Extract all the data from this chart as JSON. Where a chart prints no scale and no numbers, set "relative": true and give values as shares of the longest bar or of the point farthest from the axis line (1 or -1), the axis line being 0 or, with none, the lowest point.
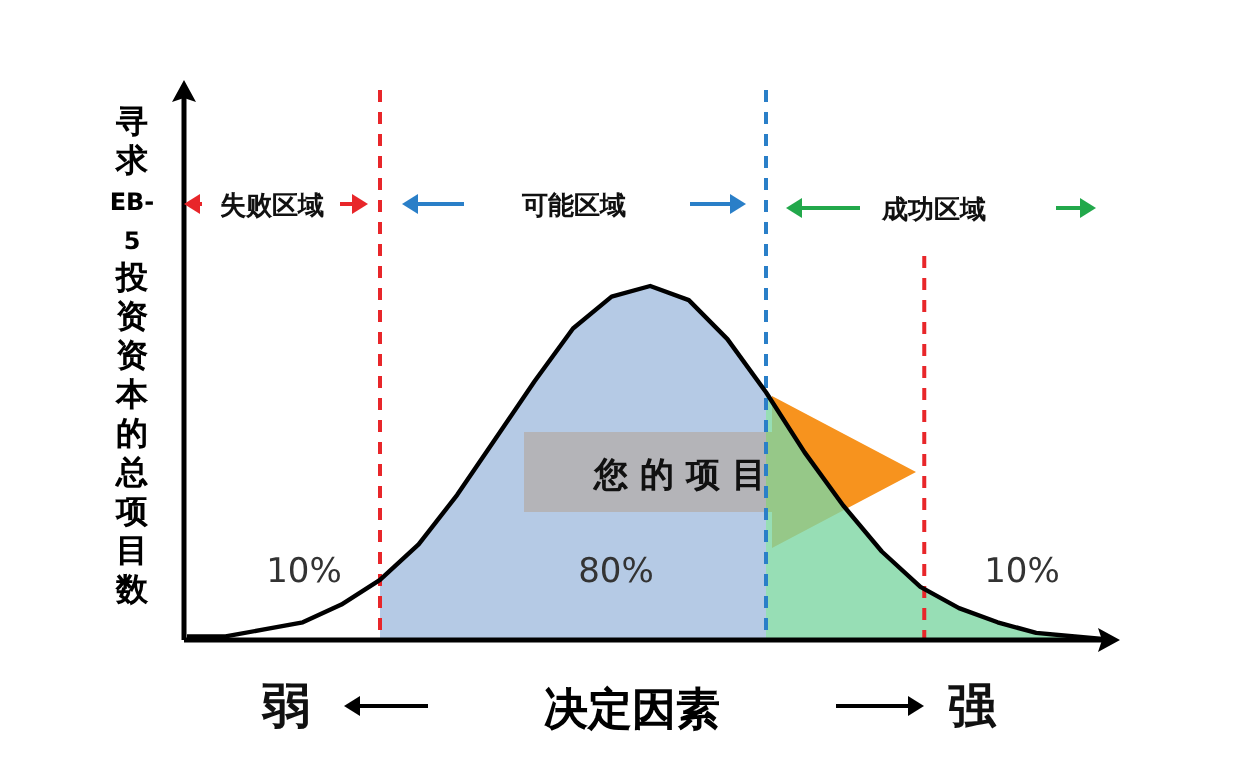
{
  "chart_data": {
    "type": "area",
    "relative": true,
    "xlabel": "决定因素",
    "ylabel": "寻求EB-5投资资本的总项目数",
    "categories": [
      null,
      null,
      null,
      null,
      null,
      null,
      null,
      null,
      null,
      null,
      null,
      null,
      null,
      null,
      null,
      null,
      null,
      null,
      null,
      null,
      null,
      null,
      null,
      null,
      null
    ],
    "series": [
      {
        "color": "#a3bddf",
        "values": [
          null,
          null,
          null,
          null,
          null,
          0.17,
          0.27,
          0.41,
          0.57,
          0.73,
          0.88,
          0.97,
          1.0,
          0.96,
          0.85,
          0.7,
          null,
          null,
          null,
          null,
          null,
          null,
          null,
          null,
          null
        ]
      },
      {
        "color": "#7dd6a3",
        "values": [
          null,
          null,
          null,
          null,
          null,
          null,
          null,
          null,
          null,
          null,
          null,
          null,
          null,
          null,
          null,
          0.7,
          0.53,
          0.38,
          0.25,
          0.15,
          0.09,
          0.05,
          0.02,
          0.01,
          0.0
        ]
      },
      {
        "type": "line",
        "color": "#000000",
        "values": [
          0.01,
          0.01,
          0.03,
          0.05,
          0.1,
          0.17,
          0.27,
          0.41,
          0.57,
          0.73,
          0.88,
          0.97,
          1.0,
          0.96,
          0.85,
          0.7,
          0.53,
          0.38,
          0.25,
          0.15,
          0.09,
          0.05,
          0.02,
          0.01,
          0.0
        ]
      }
    ],
    "annotations": [
      "失败区域",
      "可能区域",
      "成功区域",
      "10%",
      "80%",
      "10%",
      "您 的 项 目",
      "弱",
      "强"
    ],
    "grid": false,
    "marker": "none"
  }
}
